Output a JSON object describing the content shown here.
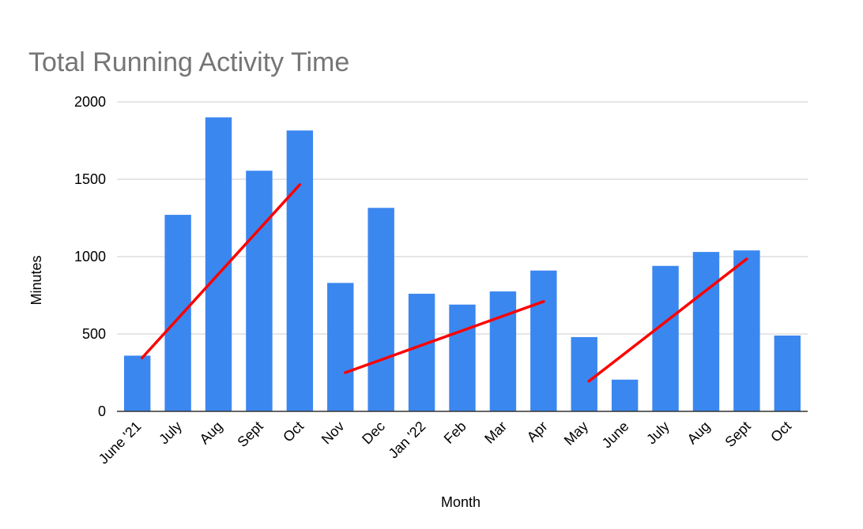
{
  "chart_data": {
    "type": "bar",
    "title": "Total Running Activity Time",
    "xlabel": "Month",
    "ylabel": "Minutes",
    "ylim": [
      0,
      2000
    ],
    "yticks": [
      0,
      500,
      1000,
      1500,
      2000
    ],
    "grid": true,
    "categories": [
      "June '21",
      "July",
      "Aug",
      "Sept",
      "Oct",
      "Nov",
      "Dec",
      "Jan '22",
      "Feb",
      "Mar",
      "Apr",
      "May",
      "June",
      "July",
      "Aug",
      "Sept",
      "Oct"
    ],
    "series": [
      {
        "values": [
          360,
          1270,
          1900,
          1555,
          1815,
          830,
          1315,
          760,
          690,
          775,
          910,
          480,
          205,
          940,
          1030,
          1040,
          490
        ],
        "color": "#3b87f0"
      }
    ],
    "trend_lines": [
      {
        "from_index": 0,
        "to_index": 4,
        "start": 345,
        "end": 1465,
        "color": "#ff0000"
      },
      {
        "from_index": 5,
        "to_index": 10,
        "start": 250,
        "end": 710,
        "color": "#ff0000"
      },
      {
        "from_index": 11,
        "to_index": 15,
        "start": 195,
        "end": 985,
        "color": "#ff0000"
      }
    ],
    "colors": {
      "grid": "#cccccc",
      "axis": "#333333",
      "title": "#757575"
    }
  }
}
